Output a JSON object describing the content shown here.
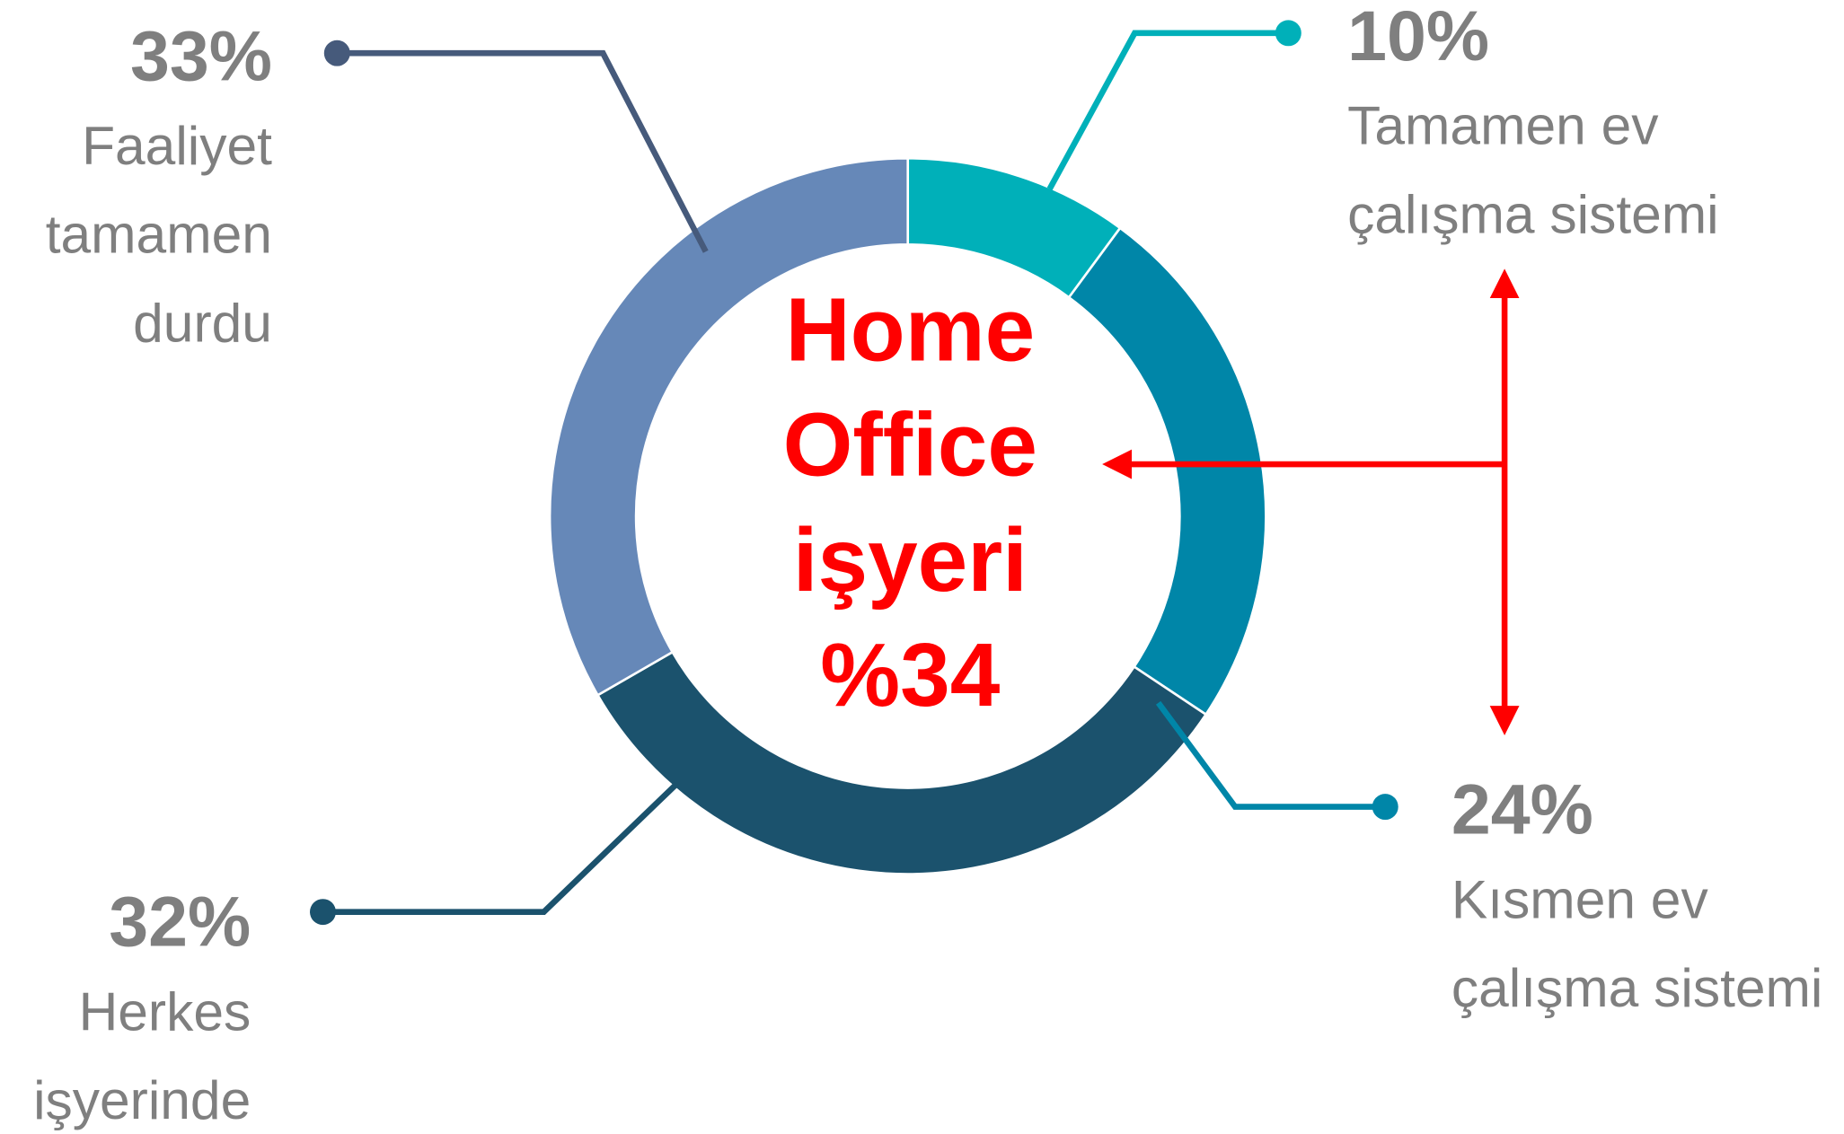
{
  "chart_data": {
    "type": "donut",
    "categories": [
      [
        "Tamamen ev",
        "çalışma sistemi"
      ],
      [
        "Kısmen ev",
        "çalışma sistemi"
      ],
      [
        "Herkes",
        "işyerinde"
      ],
      [
        "Faaliyet",
        "tamamen",
        "durdu"
      ]
    ],
    "values": [
      10,
      24,
      32,
      33
    ],
    "value_labels": [
      "10%",
      "24%",
      "32%",
      "33%"
    ],
    "colors": [
      "#00b0b9",
      "#0086a8",
      "#1b526d",
      "#6688b8"
    ],
    "center_text": [
      "Home",
      "Office",
      "işyeri",
      "%34"
    ]
  }
}
